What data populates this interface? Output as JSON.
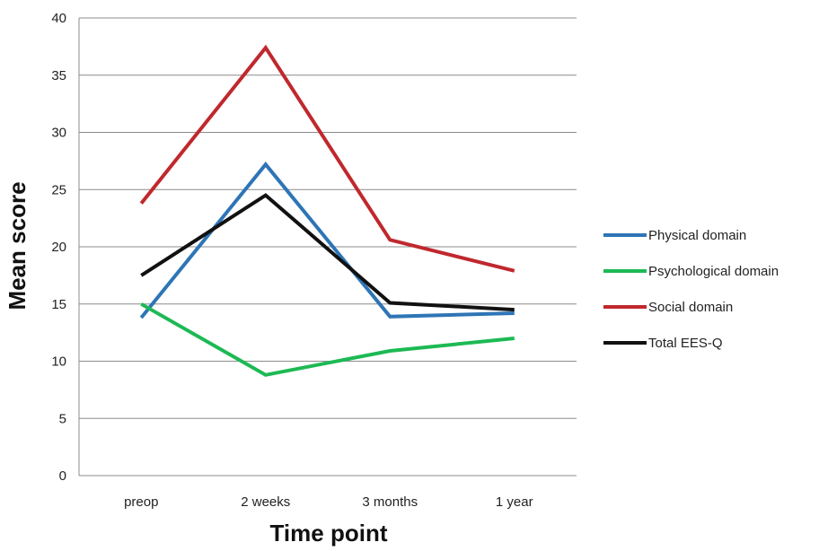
{
  "chart_data": {
    "type": "line",
    "title": "",
    "xlabel": "Time point",
    "ylabel": "Mean score",
    "categories": [
      "preop",
      "2 weeks",
      "3 months",
      "1 year"
    ],
    "ylim": [
      0,
      40
    ],
    "yticks": [
      0,
      5,
      10,
      15,
      20,
      25,
      30,
      35,
      40
    ],
    "grid": true,
    "legend_position": "right",
    "series": [
      {
        "name": "Physical domain",
        "color": "#2e75b6",
        "values": [
          13.8,
          27.2,
          13.9,
          14.2
        ]
      },
      {
        "name": "Psychological domain",
        "color": "#1db954",
        "values": [
          15.0,
          8.8,
          10.9,
          12.0
        ]
      },
      {
        "name": "Social domain",
        "color": "#c0282d",
        "values": [
          23.8,
          37.4,
          20.6,
          17.9
        ]
      },
      {
        "name": "Total EES-Q",
        "color": "#111111",
        "values": [
          17.5,
          24.5,
          15.1,
          14.5
        ]
      }
    ]
  }
}
